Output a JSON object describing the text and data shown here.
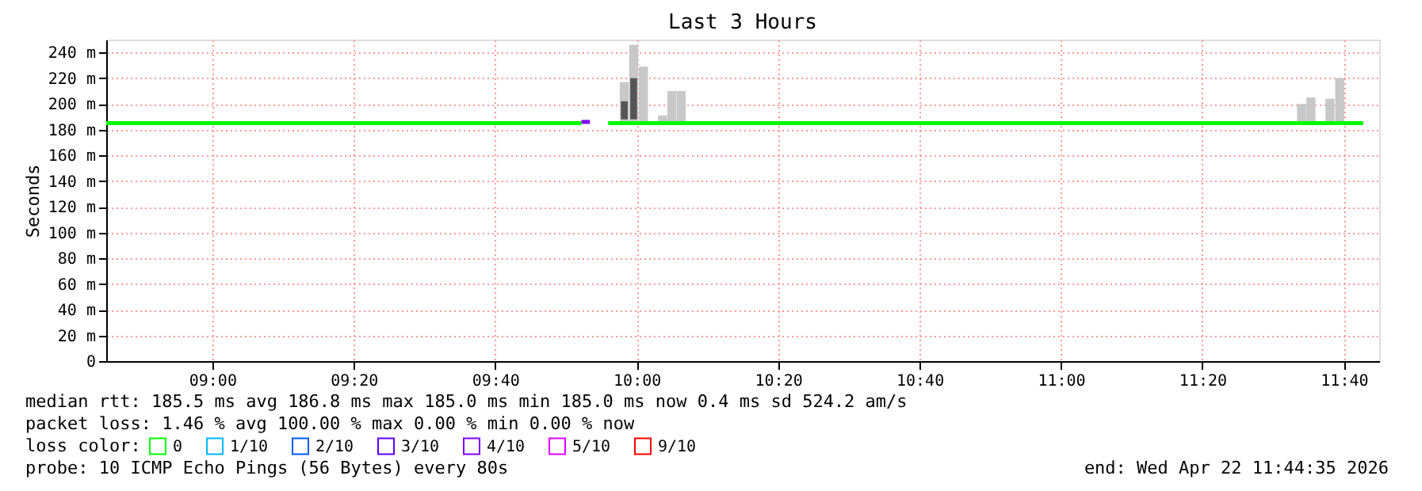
{
  "chart_data": {
    "type": "line",
    "title": "Last 3 Hours",
    "ylabel": "Seconds",
    "legend_title": "loss color:",
    "legend": "bottom",
    "grid": true,
    "xlim": [
      8.75,
      11.75
    ],
    "ylim": [
      0,
      250
    ],
    "xticks": [
      {
        "value": 9,
        "label": "09:00"
      },
      {
        "value": 9.3333333,
        "label": "09:20"
      },
      {
        "value": 9.6666667,
        "label": "09:40"
      },
      {
        "value": 10,
        "label": "10:00"
      },
      {
        "value": 10.3333333,
        "label": "10:20"
      },
      {
        "value": 10.6666667,
        "label": "10:40"
      },
      {
        "value": 11,
        "label": "11:00"
      },
      {
        "value": 11.3333333,
        "label": "11:20"
      },
      {
        "value": 11.6666667,
        "label": "11:40"
      }
    ],
    "yticks": [
      0,
      {
        "value": 20,
        "label": "20 m"
      },
      {
        "value": 40,
        "label": "40 m"
      },
      {
        "value": 60,
        "label": "60 m"
      },
      {
        "value": 80,
        "label": "80 m"
      },
      {
        "value": 100,
        "label": "100 m"
      },
      {
        "value": 120,
        "label": "120 m"
      },
      {
        "value": 140,
        "label": "140 m"
      },
      {
        "value": 160,
        "label": "160 m"
      },
      {
        "value": 180,
        "label": "180 m"
      },
      {
        "value": 200,
        "label": "200 m"
      },
      {
        "value": 220,
        "label": "220 m"
      },
      {
        "value": 240,
        "label": "240 m"
      }
    ],
    "series": [
      {
        "type": "bar",
        "color": "#c8c8c8",
        "x": [
          9.971,
          9.993,
          10.016,
          10.061,
          10.083,
          10.105,
          11.567,
          11.589,
          11.634,
          11.657
        ],
        "base": [
          186,
          186,
          186,
          186,
          186,
          186,
          186,
          186,
          186,
          186
        ],
        "values": [
          31,
          60,
          43,
          5,
          24,
          24,
          14,
          19,
          18,
          34
        ]
      },
      {
        "type": "bar",
        "color": "#555555",
        "x": [
          9.971,
          9.993
        ],
        "base": [
          188,
          188
        ],
        "values": [
          14,
          32
        ]
      },
      {
        "name": "0",
        "color": "#00ff00",
        "x": [
          8.75,
          9.87,
          9.9,
          9.933,
          11.7125
        ],
        "values": [
          185,
          185,
          null,
          185,
          185
        ]
      },
      {
        "name": "1/10",
        "color": "#00b8ff"
      },
      {
        "name": "2/10",
        "color": "#0059ff"
      },
      {
        "name": "3/10",
        "color": "#5e00ff"
      },
      {
        "name": "4/10",
        "color": "#7e00ff",
        "x": [
          9.87,
          9.89
        ],
        "values": [
          186,
          186
        ]
      },
      {
        "name": "5/10",
        "color": "#dd00ff"
      },
      {
        "name": "9/10",
        "color": "#ff0000"
      }
    ],
    "annotations": [
      "median rtt:  185.5 ms avg  186.8 ms max  185.0 ms min  185.0 ms now  0.4 ms sd  524.2   am/s",
      "packet loss: 1.46 % avg  100.00 % max  0.00 % min  0.00 % now",
      "probe:       10 ICMP Echo Pings (56 Bytes) every 80s",
      "end: Wed Apr 22 11:44:35 2026"
    ]
  }
}
